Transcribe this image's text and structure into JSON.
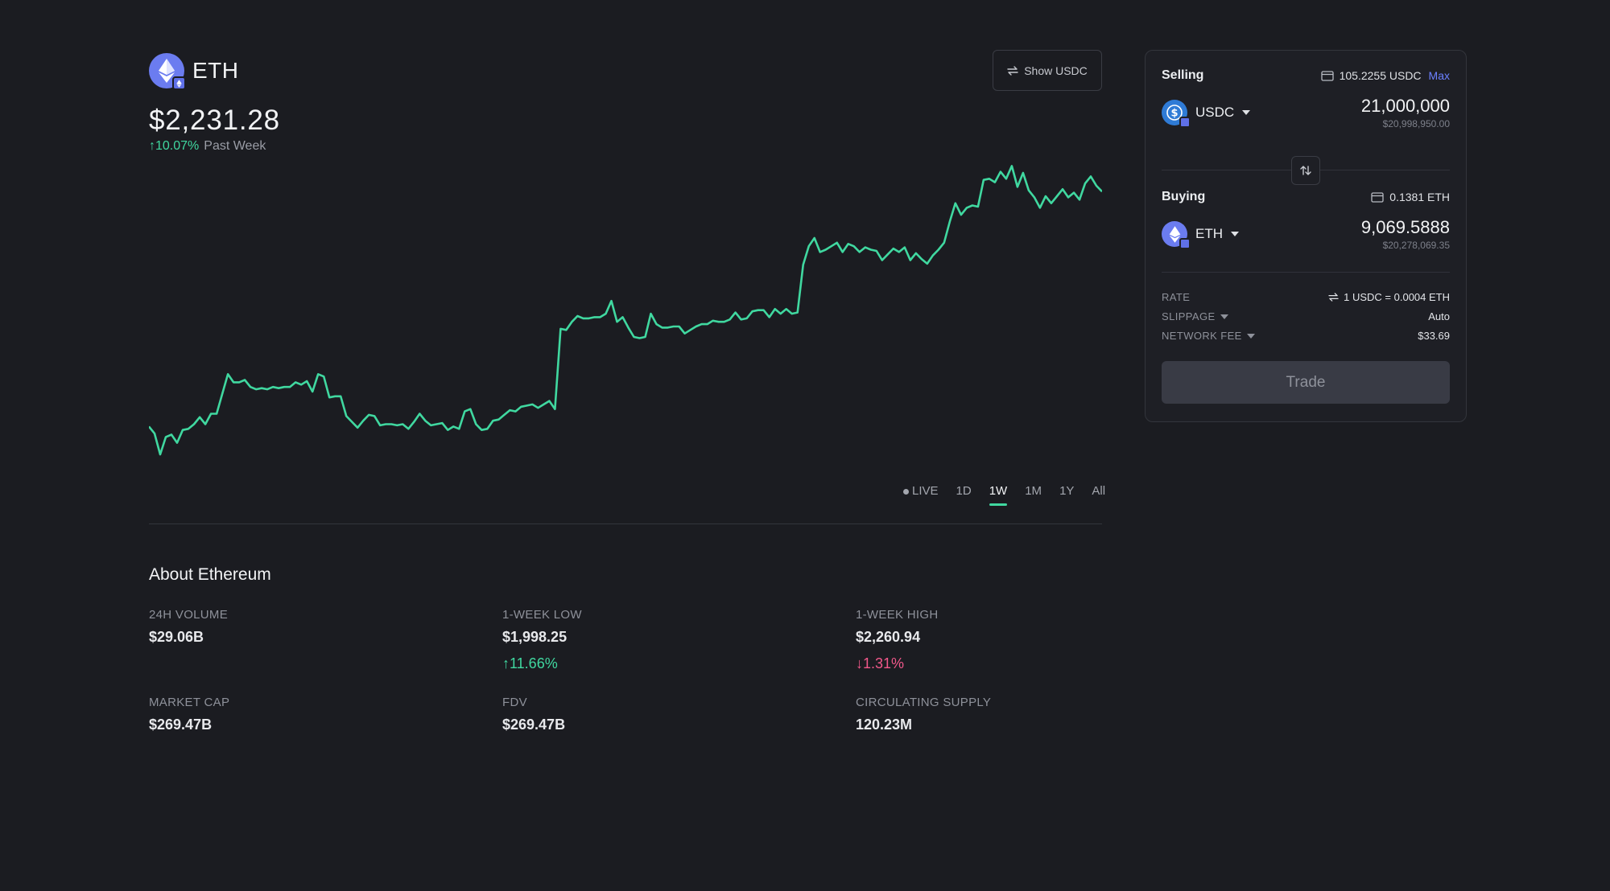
{
  "token": {
    "symbol": "ETH",
    "icon": "ethereum-icon",
    "price": "$2,231.28",
    "change": "10.07%",
    "change_label": "Past Week"
  },
  "show_currency_button": "Show USDC",
  "time_ranges": [
    {
      "label": "LIVE"
    },
    {
      "label": "1D"
    },
    {
      "label": "1W",
      "active": true
    },
    {
      "label": "1M"
    },
    {
      "label": "1Y"
    },
    {
      "label": "All"
    }
  ],
  "chart_data": {
    "type": "line",
    "series": [
      {
        "color": "#40d8a0",
        "values": [
          2036,
          2030,
          2012,
          2027,
          2029,
          2022,
          2033,
          2034,
          2038,
          2044,
          2038,
          2047,
          2047,
          2064,
          2081,
          2074,
          2074,
          2076,
          2070,
          2068,
          2069,
          2068,
          2070,
          2069,
          2070,
          2070,
          2074,
          2072,
          2075,
          2066,
          2081,
          2079,
          2061,
          2062,
          2062,
          2045,
          2040,
          2035,
          2041,
          2046,
          2045,
          2037,
          2038,
          2038,
          2037,
          2038,
          2034,
          2040,
          2047,
          2041,
          2037,
          2038,
          2039,
          2033,
          2036,
          2034,
          2049,
          2051,
          2038,
          2033,
          2034,
          2041,
          2042,
          2046,
          2050,
          2049,
          2053,
          2054,
          2055,
          2052,
          2055,
          2058,
          2051,
          2120,
          2119,
          2126,
          2131,
          2129,
          2129,
          2130,
          2130,
          2133,
          2144,
          2126,
          2130,
          2121,
          2113,
          2112,
          2113,
          2133,
          2124,
          2121,
          2121,
          2122,
          2122,
          2116,
          2119,
          2122,
          2124,
          2124,
          2127,
          2126,
          2126,
          2128,
          2134,
          2128,
          2129,
          2135,
          2136,
          2136,
          2130,
          2137,
          2133,
          2137,
          2133,
          2134,
          2175,
          2191,
          2198,
          2186,
          2188,
          2191,
          2194,
          2186,
          2193,
          2191,
          2186,
          2190,
          2188,
          2187,
          2179,
          2184,
          2189,
          2186,
          2190,
          2179,
          2185,
          2180,
          2176,
          2183,
          2188,
          2194,
          2212,
          2228,
          2218,
          2224,
          2226,
          2225,
          2248,
          2249,
          2246,
          2255,
          2249,
          2260,
          2242,
          2254,
          2239,
          2233,
          2224,
          2234,
          2228,
          2234,
          2240,
          2233,
          2237,
          2231,
          2245,
          2251,
          2243,
          2238
        ]
      }
    ],
    "ylim": [
      1998.25,
      2260.94
    ],
    "grid": false
  },
  "about": {
    "title": "About Ethereum",
    "stats": [
      {
        "label": "24H VOLUME",
        "value": "$29.06B"
      },
      {
        "label": "1-WEEK LOW",
        "value": "$1,998.25",
        "change": "11.66%",
        "direction": "up"
      },
      {
        "label": "1-WEEK HIGH",
        "value": "$2,260.94",
        "change": "1.31%",
        "direction": "down"
      },
      {
        "label": "MARKET CAP",
        "value": "$269.47B"
      },
      {
        "label": "FDV",
        "value": "$269.47B"
      },
      {
        "label": "CIRCULATING SUPPLY",
        "value": "120.23M"
      }
    ]
  },
  "trade": {
    "selling": {
      "label": "Selling",
      "balance": "105.2255 USDC",
      "max_label": "Max",
      "token": "USDC",
      "amount": "21,000,000",
      "usd_value": "$20,998,950.00"
    },
    "buying": {
      "label": "Buying",
      "balance": "0.1381 ETH",
      "token": "ETH",
      "amount": "9,069.5888",
      "usd_value": "$20,278,069.35"
    },
    "rate_label": "RATE",
    "rate_value": "1 USDC = 0.0004 ETH",
    "slippage_label": "SLIPPAGE",
    "slippage_value": "Auto",
    "network_fee_label": "NETWORK FEE",
    "network_fee_value": "$33.69",
    "trade_button": "Trade"
  },
  "colors": {
    "background": "#1b1c21",
    "accent_green": "#40d8a0",
    "accent_red": "#f0588a",
    "link_blue": "#6b80ff",
    "eth_purple": "#6b7cf0",
    "usdc_blue": "#2f7bd6"
  }
}
